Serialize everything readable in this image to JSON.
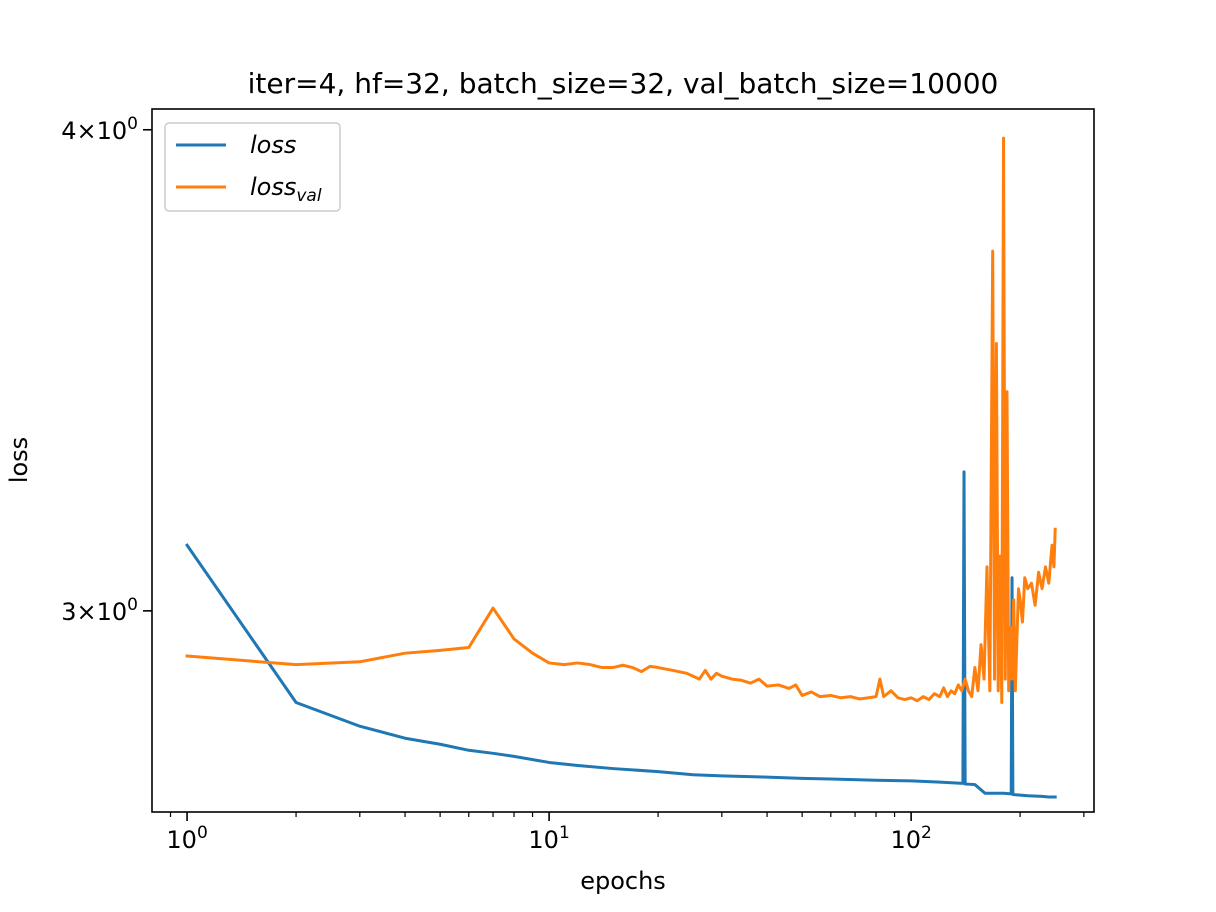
{
  "chart_data": {
    "type": "line",
    "title": "iter=4, hf=32, batch_size=32, val_batch_size=10000",
    "xlabel": "epochs",
    "ylabel": "loss",
    "xscale": "log",
    "yscale": "log",
    "xlim": [
      0.8,
      320
    ],
    "ylim": [
      2.66,
      4.05
    ],
    "grid": false,
    "legend_position": "upper left",
    "x_ticks": [
      {
        "value": 1,
        "base": "10",
        "exp": "0"
      },
      {
        "value": 10,
        "base": "10",
        "exp": "1"
      },
      {
        "value": 100,
        "base": "10",
        "exp": "2"
      }
    ],
    "y_ticks": [
      {
        "value": 3,
        "mant": "3",
        "base": "10",
        "exp": "0"
      },
      {
        "value": 4,
        "mant": "4",
        "base": "10",
        "exp": "0"
      }
    ],
    "series": [
      {
        "name": "loss",
        "color": "#1f77b4",
        "x": [
          1,
          2,
          3,
          4,
          5,
          6,
          7,
          8,
          10,
          12,
          15,
          20,
          25,
          30,
          40,
          50,
          60,
          80,
          100,
          120,
          139,
          140,
          141,
          150,
          160,
          180,
          189,
          190,
          191,
          200,
          210,
          230,
          240,
          250
        ],
        "y": [
          3.12,
          2.84,
          2.8,
          2.78,
          2.77,
          2.76,
          2.755,
          2.75,
          2.74,
          2.735,
          2.73,
          2.725,
          2.72,
          2.718,
          2.716,
          2.714,
          2.713,
          2.711,
          2.71,
          2.708,
          2.706,
          3.26,
          2.705,
          2.704,
          2.69,
          2.69,
          2.689,
          3.06,
          2.688,
          2.687,
          2.686,
          2.685,
          2.684,
          2.684
        ]
      },
      {
        "name": "loss",
        "subscript": "val",
        "color": "#ff7f0e",
        "x": [
          1,
          2,
          3,
          4,
          5,
          6,
          7,
          8,
          9,
          10,
          11,
          12,
          13,
          14,
          15,
          16,
          17,
          18,
          19,
          20,
          22,
          24,
          26,
          27,
          28,
          29,
          30,
          32,
          34,
          36,
          38,
          40,
          43,
          46,
          48,
          50,
          53,
          56,
          60,
          64,
          68,
          72,
          76,
          80,
          82,
          84,
          88,
          92,
          96,
          100,
          104,
          108,
          112,
          116,
          120,
          123,
          126,
          129,
          132,
          135,
          138,
          141,
          144,
          147,
          150,
          153,
          156,
          159,
          162,
          165,
          168,
          170,
          172,
          174,
          176,
          178,
          180,
          182,
          184,
          186,
          188,
          190,
          192,
          194,
          196,
          198,
          200,
          203,
          206,
          210,
          215,
          220,
          225,
          230,
          235,
          240,
          245,
          248,
          250
        ],
        "y": [
          2.92,
          2.905,
          2.91,
          2.925,
          2.93,
          2.935,
          3.005,
          2.95,
          2.925,
          2.908,
          2.905,
          2.908,
          2.905,
          2.9,
          2.9,
          2.904,
          2.9,
          2.893,
          2.902,
          2.9,
          2.895,
          2.89,
          2.88,
          2.895,
          2.88,
          2.89,
          2.885,
          2.88,
          2.878,
          2.873,
          2.88,
          2.868,
          2.87,
          2.864,
          2.87,
          2.852,
          2.858,
          2.85,
          2.852,
          2.848,
          2.85,
          2.846,
          2.848,
          2.85,
          2.88,
          2.85,
          2.86,
          2.848,
          2.845,
          2.848,
          2.843,
          2.85,
          2.845,
          2.855,
          2.85,
          2.865,
          2.85,
          2.86,
          2.855,
          2.87,
          2.86,
          2.88,
          2.86,
          2.85,
          2.9,
          2.86,
          2.94,
          2.88,
          3.08,
          2.86,
          3.72,
          2.88,
          3.52,
          2.86,
          3.1,
          2.84,
          3.98,
          2.88,
          3.42,
          2.86,
          2.97,
          2.88,
          3.02,
          2.86,
          2.95,
          3.04,
          3.02,
          2.98,
          3.06,
          3.04,
          3.05,
          3.01,
          3.07,
          3.04,
          3.08,
          3.05,
          3.12,
          3.08,
          3.15
        ]
      }
    ]
  }
}
